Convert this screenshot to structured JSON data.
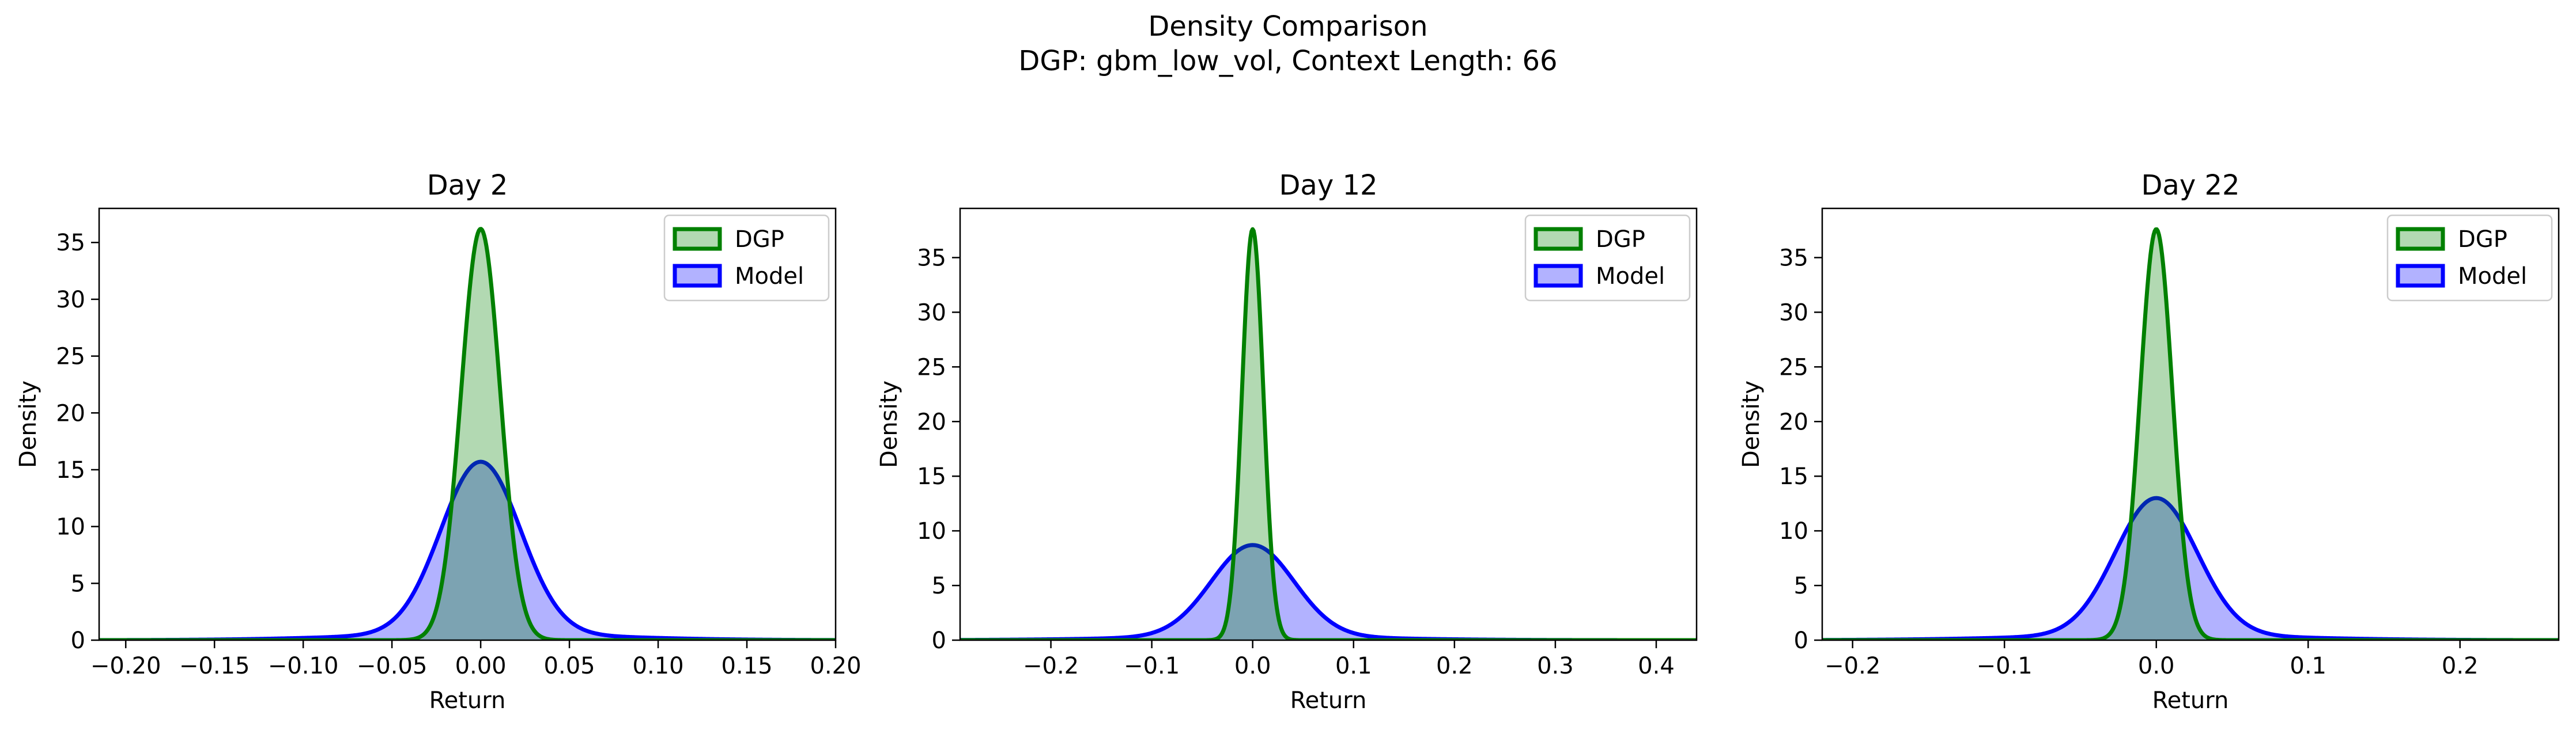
{
  "figure": {
    "title": "Density Comparison",
    "subtitle": "DGP: gbm_low_vol, Context Length: 66"
  },
  "colors": {
    "dgp_line": "#008000",
    "dgp_fill": "#008000",
    "model_line": "#0000ff",
    "model_fill": "#0000ff"
  },
  "chart_data": [
    {
      "type": "area",
      "title": "Day 2",
      "xlabel": "Return",
      "ylabel": "Density",
      "xlim": [
        -0.215,
        0.2
      ],
      "ylim": [
        0,
        38
      ],
      "xticks": [
        -0.2,
        -0.15,
        -0.1,
        -0.05,
        0.0,
        0.05,
        0.1,
        0.15,
        0.2
      ],
      "xtick_labels": [
        "−0.20",
        "−0.15",
        "−0.10",
        "−0.05",
        "0.00",
        "0.05",
        "0.10",
        "0.15",
        "0.20"
      ],
      "yticks": [
        0,
        5,
        10,
        15,
        20,
        25,
        30,
        35
      ],
      "legend": {
        "position": "top-right",
        "entries": [
          "DGP",
          "Model"
        ]
      },
      "grid": false,
      "series": [
        {
          "name": "DGP",
          "components": [
            {
              "w": 1.0,
              "mu": 0.0,
              "sigma": 0.011
            }
          ],
          "peak": 36.2
        },
        {
          "name": "Model",
          "components": [
            {
              "w": 0.9,
              "mu": 0.0,
              "sigma": 0.0225
            },
            {
              "w": 0.1,
              "mu": 0.0,
              "sigma": 0.07
            }
          ],
          "peak": 15.7
        }
      ]
    },
    {
      "type": "area",
      "title": "Day 12",
      "xlabel": "Return",
      "ylabel": "Density",
      "xlim": [
        -0.29,
        0.44
      ],
      "ylim": [
        0,
        39.5
      ],
      "xticks": [
        -0.2,
        -0.1,
        0.0,
        0.1,
        0.2,
        0.3,
        0.4
      ],
      "xtick_labels": [
        "−0.2",
        "−0.1",
        "0.0",
        "0.1",
        "0.2",
        "0.3",
        "0.4"
      ],
      "yticks": [
        0,
        5,
        10,
        15,
        20,
        25,
        30,
        35
      ],
      "legend": {
        "position": "top-right",
        "entries": [
          "DGP",
          "Model"
        ]
      },
      "grid": false,
      "series": [
        {
          "name": "DGP",
          "components": [
            {
              "w": 1.0,
              "mu": 0.0,
              "sigma": 0.0106
            }
          ],
          "peak": 37.6
        },
        {
          "name": "Model",
          "components": [
            {
              "w": 0.9,
              "mu": 0.0,
              "sigma": 0.041
            },
            {
              "w": 0.1,
              "mu": 0.0,
              "sigma": 0.12
            }
          ],
          "peak": 8.7
        }
      ]
    },
    {
      "type": "area",
      "title": "Day 22",
      "xlabel": "Return",
      "ylabel": "Density",
      "xlim": [
        -0.22,
        0.265
      ],
      "ylim": [
        0,
        39.5
      ],
      "xticks": [
        -0.2,
        -0.1,
        0.0,
        0.1,
        0.2
      ],
      "xtick_labels": [
        "−0.2",
        "−0.1",
        "0.0",
        "0.1",
        "0.2"
      ],
      "yticks": [
        0,
        5,
        10,
        15,
        20,
        25,
        30,
        35
      ],
      "legend": {
        "position": "top-right",
        "entries": [
          "DGP",
          "Model"
        ]
      },
      "grid": false,
      "series": [
        {
          "name": "DGP",
          "components": [
            {
              "w": 1.0,
              "mu": 0.0,
              "sigma": 0.0106
            }
          ],
          "peak": 37.6
        },
        {
          "name": "Model",
          "components": [
            {
              "w": 0.9,
              "mu": 0.0,
              "sigma": 0.027
            },
            {
              "w": 0.1,
              "mu": 0.0,
              "sigma": 0.085
            }
          ],
          "peak": 13.0
        }
      ]
    }
  ]
}
